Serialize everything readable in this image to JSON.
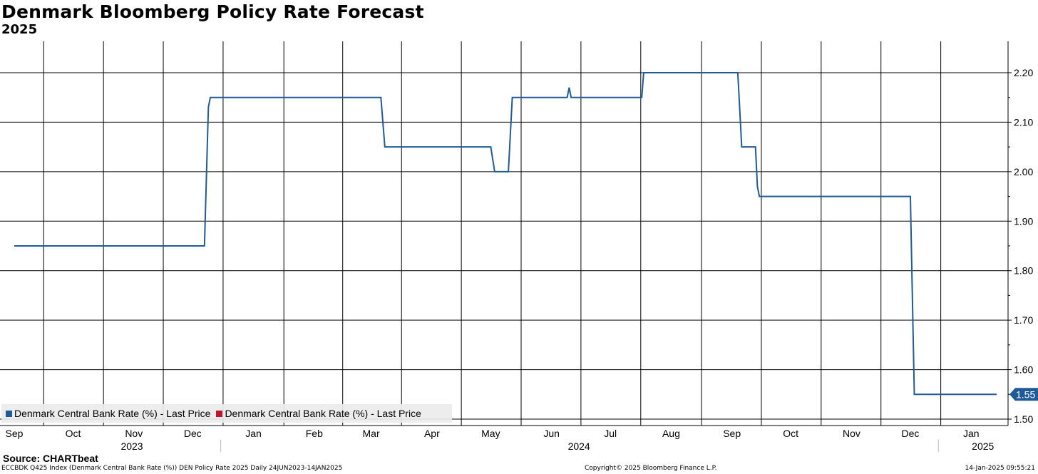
{
  "header": {
    "title": "Denmark Bloomberg Policy Rate Forecast",
    "subtitle": "2025"
  },
  "legend": [
    {
      "label": "Denmark Central Bank Rate (%) - Last Price",
      "color": "#1f5b99"
    },
    {
      "label": "Denmark Central Bank Rate (%) - Last Price",
      "color": "#c0152f"
    }
  ],
  "source": "Source: CHARTbeat",
  "footer": {
    "left": "ECCBDK Q425 Index (Denmark Central Bank Rate (%)) DEN Policy Rate 2025  Daily 24JUN2023-14JAN2025",
    "center": "Copyright© 2025 Bloomberg Finance L.P.",
    "right": "14-Jan-2025 09:55:21"
  },
  "chart_data": {
    "type": "line",
    "title": "Denmark Bloomberg Policy Rate Forecast",
    "subtitle": "2025",
    "ylim": [
      1.5,
      2.26
    ],
    "y_ticks": [
      "1.50",
      "1.60",
      "1.70",
      "1.80",
      "1.90",
      "2.00",
      "2.10",
      "2.20"
    ],
    "x_range": [
      "2023-09-01",
      "2025-01-14"
    ],
    "month_ticks": [
      {
        "date": "2023-09-01",
        "label": "Sep"
      },
      {
        "date": "2023-10-01",
        "label": "Oct"
      },
      {
        "date": "2023-11-01",
        "label": "Nov"
      },
      {
        "date": "2023-12-01",
        "label": "Dec"
      },
      {
        "date": "2024-01-01",
        "label": "Jan"
      },
      {
        "date": "2024-02-01",
        "label": "Feb"
      },
      {
        "date": "2024-03-01",
        "label": "Mar"
      },
      {
        "date": "2024-04-01",
        "label": "Apr"
      },
      {
        "date": "2024-05-01",
        "label": "May"
      },
      {
        "date": "2024-06-01",
        "label": "Jun"
      },
      {
        "date": "2024-07-01",
        "label": "Jul"
      },
      {
        "date": "2024-08-01",
        "label": "Aug"
      },
      {
        "date": "2024-09-01",
        "label": "Sep"
      },
      {
        "date": "2024-10-01",
        "label": "Oct"
      },
      {
        "date": "2024-11-01",
        "label": "Nov"
      },
      {
        "date": "2024-12-01",
        "label": "Dec"
      },
      {
        "date": "2025-01-01",
        "label": "Jan"
      }
    ],
    "year_labels": [
      {
        "label": "2023",
        "date": "2023-10-31"
      },
      {
        "label": "2024",
        "date": "2024-06-15"
      },
      {
        "label": "2025",
        "date": "2025-01-07"
      }
    ],
    "year_boundaries": [
      "2024-01-01",
      "2025-01-01"
    ],
    "grid": true,
    "legend_position": "bottom-left",
    "last_value_label": "1.55",
    "series": [
      {
        "name": "Denmark Central Bank Rate (%) - Last Price",
        "color": "#1f5b99",
        "points": [
          [
            "2023-09-01",
            1.85
          ],
          [
            "2023-12-07",
            1.85
          ],
          [
            "2023-12-09",
            2.13
          ],
          [
            "2023-12-10",
            2.15
          ],
          [
            "2024-03-06",
            2.15
          ],
          [
            "2024-03-08",
            2.05
          ],
          [
            "2024-05-01",
            2.05
          ],
          [
            "2024-05-03",
            2.0
          ],
          [
            "2024-05-10",
            2.0
          ],
          [
            "2024-05-12",
            2.15
          ],
          [
            "2024-06-09",
            2.15
          ],
          [
            "2024-06-10",
            2.17
          ],
          [
            "2024-06-11",
            2.15
          ],
          [
            "2024-07-17",
            2.15
          ],
          [
            "2024-07-18",
            2.2
          ],
          [
            "2024-09-04",
            2.2
          ],
          [
            "2024-09-06",
            2.05
          ],
          [
            "2024-09-13",
            2.05
          ],
          [
            "2024-09-14",
            1.97
          ],
          [
            "2024-09-15",
            1.95
          ],
          [
            "2024-12-01",
            1.95
          ],
          [
            "2024-12-03",
            1.55
          ],
          [
            "2025-01-14",
            1.55
          ]
        ]
      }
    ]
  }
}
